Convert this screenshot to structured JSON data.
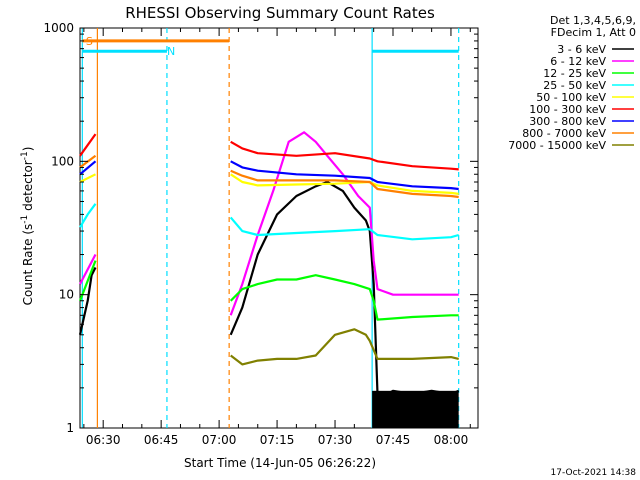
{
  "chart_data": {
    "type": "line",
    "title": "RHESSI Observing Summary Count Rates",
    "xlabel": "Start Time (14-Jun-05 06:26:22)",
    "ylabel_main": "Count Rate (s",
    "ylabel_sup1": "-1",
    "ylabel_mid": " detector",
    "ylabel_sup2": "-1",
    "ylabel_end": ")",
    "y_scale": "log",
    "ylim": [
      1,
      1000
    ],
    "xlim_minutes": [
      24,
      127
    ],
    "x_tick_minutes": [
      30,
      45,
      60,
      75,
      90,
      105,
      120
    ],
    "x_tick_labels": [
      "06:30",
      "06:45",
      "07:00",
      "07:15",
      "07:30",
      "07:45",
      "08:00"
    ],
    "y_tick_values": [
      1,
      10,
      100,
      1000
    ],
    "y_tick_labels": [
      "1",
      "10",
      "100",
      "1000"
    ],
    "legend_header": [
      "Det 1,3,4,5,6,9,",
      "FDecim 1, Att 0"
    ],
    "legend_placement": "right, outside plot",
    "footer": "17-Oct-2021 14:38",
    "event_labels": [
      {
        "text": "S",
        "minute": 25,
        "value": 800,
        "color": "#ff8000"
      },
      {
        "text": "N",
        "minute": 46,
        "value": 670,
        "color": "#00e0ff"
      }
    ],
    "series": [
      {
        "name": "3 - 6 keV",
        "color": "#000000",
        "points": [
          [
            24,
            5
          ],
          [
            26,
            9
          ],
          [
            27,
            14
          ],
          [
            28,
            16
          ],
          [
            null,
            null
          ],
          [
            63,
            5
          ],
          [
            66,
            8
          ],
          [
            70,
            20
          ],
          [
            75,
            40
          ],
          [
            80,
            55
          ],
          [
            85,
            65
          ],
          [
            88,
            70
          ],
          [
            92,
            60
          ],
          [
            95,
            45
          ],
          [
            98,
            36
          ],
          [
            99,
            30
          ],
          [
            100,
            12
          ],
          [
            101,
            1.8
          ],
          [
            102,
            1.7
          ],
          [
            105,
            1.9
          ],
          [
            110,
            1.8
          ],
          [
            115,
            1.9
          ],
          [
            120,
            1.8
          ],
          [
            122,
            1.9
          ]
        ]
      },
      {
        "name": "6 - 12 keV",
        "color": "#ff00ff",
        "points": [
          [
            24,
            12
          ],
          [
            28,
            20
          ],
          [
            null,
            null
          ],
          [
            63,
            7
          ],
          [
            66,
            12
          ],
          [
            70,
            28
          ],
          [
            74,
            60
          ],
          [
            78,
            140
          ],
          [
            82,
            165
          ],
          [
            85,
            140
          ],
          [
            88,
            110
          ],
          [
            92,
            80
          ],
          [
            96,
            55
          ],
          [
            99,
            45
          ],
          [
            100,
            18
          ],
          [
            101,
            11
          ],
          [
            105,
            10
          ],
          [
            110,
            10
          ],
          [
            115,
            10
          ],
          [
            120,
            10
          ],
          [
            122,
            10
          ]
        ]
      },
      {
        "name": "12 - 25 keV",
        "color": "#00ff00",
        "points": [
          [
            24,
            9
          ],
          [
            28,
            18
          ],
          [
            null,
            null
          ],
          [
            63,
            9
          ],
          [
            66,
            11
          ],
          [
            70,
            12
          ],
          [
            75,
            13
          ],
          [
            80,
            13
          ],
          [
            85,
            14
          ],
          [
            90,
            13
          ],
          [
            95,
            12
          ],
          [
            99,
            11
          ],
          [
            100,
            9
          ],
          [
            101,
            6.5
          ],
          [
            110,
            6.8
          ],
          [
            120,
            7
          ],
          [
            122,
            7
          ]
        ]
      },
      {
        "name": "25 - 50 keV",
        "color": "#00ffff",
        "points": [
          [
            24,
            32
          ],
          [
            26,
            40
          ],
          [
            28,
            48
          ],
          [
            null,
            null
          ],
          [
            63,
            38
          ],
          [
            66,
            30
          ],
          [
            70,
            28
          ],
          [
            80,
            29
          ],
          [
            90,
            30
          ],
          [
            99,
            31
          ],
          [
            101,
            28
          ],
          [
            110,
            26
          ],
          [
            120,
            27
          ],
          [
            122,
            28
          ]
        ]
      },
      {
        "name": "50 - 100 keV",
        "color": "#ffff00",
        "points": [
          [
            24,
            70
          ],
          [
            28,
            80
          ],
          [
            null,
            null
          ],
          [
            63,
            80
          ],
          [
            66,
            70
          ],
          [
            70,
            66
          ],
          [
            80,
            67
          ],
          [
            90,
            68
          ],
          [
            99,
            70
          ],
          [
            101,
            66
          ],
          [
            110,
            60
          ],
          [
            120,
            58
          ],
          [
            122,
            57
          ]
        ]
      },
      {
        "name": "100 - 300 keV",
        "color": "#ff0000",
        "points": [
          [
            24,
            110
          ],
          [
            28,
            160
          ],
          [
            null,
            null
          ],
          [
            63,
            140
          ],
          [
            66,
            125
          ],
          [
            70,
            115
          ],
          [
            80,
            110
          ],
          [
            90,
            115
          ],
          [
            99,
            105
          ],
          [
            101,
            100
          ],
          [
            110,
            92
          ],
          [
            120,
            88
          ],
          [
            122,
            87
          ]
        ]
      },
      {
        "name": "300 - 800 keV",
        "color": "#0000ff",
        "points": [
          [
            24,
            80
          ],
          [
            28,
            100
          ],
          [
            null,
            null
          ],
          [
            63,
            100
          ],
          [
            66,
            90
          ],
          [
            70,
            85
          ],
          [
            80,
            80
          ],
          [
            90,
            78
          ],
          [
            99,
            75
          ],
          [
            101,
            70
          ],
          [
            110,
            65
          ],
          [
            120,
            63
          ],
          [
            122,
            62
          ]
        ]
      },
      {
        "name": "800 - 7000 keV",
        "color": "#ff8000",
        "points": [
          [
            24,
            90
          ],
          [
            28,
            110
          ],
          [
            null,
            null
          ],
          [
            63,
            85
          ],
          [
            66,
            78
          ],
          [
            70,
            72
          ],
          [
            80,
            72
          ],
          [
            90,
            72
          ],
          [
            99,
            70
          ],
          [
            101,
            62
          ],
          [
            110,
            57
          ],
          [
            120,
            55
          ],
          [
            122,
            54
          ]
        ]
      },
      {
        "name": "7000 - 15000 keV",
        "color": "#808000",
        "points": [
          [
            63,
            3.5
          ],
          [
            66,
            3
          ],
          [
            70,
            3.2
          ],
          [
            75,
            3.3
          ],
          [
            80,
            3.3
          ],
          [
            85,
            3.5
          ],
          [
            90,
            5
          ],
          [
            95,
            5.5
          ],
          [
            98,
            5
          ],
          [
            99,
            4.5
          ],
          [
            101,
            3.3
          ],
          [
            110,
            3.3
          ],
          [
            120,
            3.4
          ],
          [
            122,
            3.3
          ]
        ]
      }
    ],
    "flags": [
      {
        "color": "#ff8000",
        "minutes": [
          24.6,
          62.6
        ],
        "value": 800,
        "style": "solid"
      },
      {
        "color": "#00e0ff",
        "minutes": [
          24.6,
          46.5
        ],
        "value": 670,
        "style": "solid"
      },
      {
        "color": "#00e0ff",
        "minutes": [
          99.6,
          122
        ],
        "value": 670,
        "style": "solid"
      }
    ],
    "vlines": [
      {
        "minute": 24.6,
        "color": "#00e0ff",
        "style": "solid"
      },
      {
        "minute": 28.5,
        "color": "#ff8000",
        "style": "solid"
      },
      {
        "minute": 46.5,
        "color": "#00e0ff",
        "style": "dashed"
      },
      {
        "minute": 62.6,
        "color": "#ff8000",
        "style": "dashed"
      },
      {
        "minute": 99.6,
        "color": "#00e0ff",
        "style": "solid"
      },
      {
        "minute": 122.0,
        "color": "#00e0ff",
        "style": "dashed"
      }
    ],
    "blocks": [
      {
        "minutes": [
          99.6,
          122
        ],
        "ylo": 1,
        "yhi": 1.9,
        "color": "#000000"
      }
    ]
  }
}
